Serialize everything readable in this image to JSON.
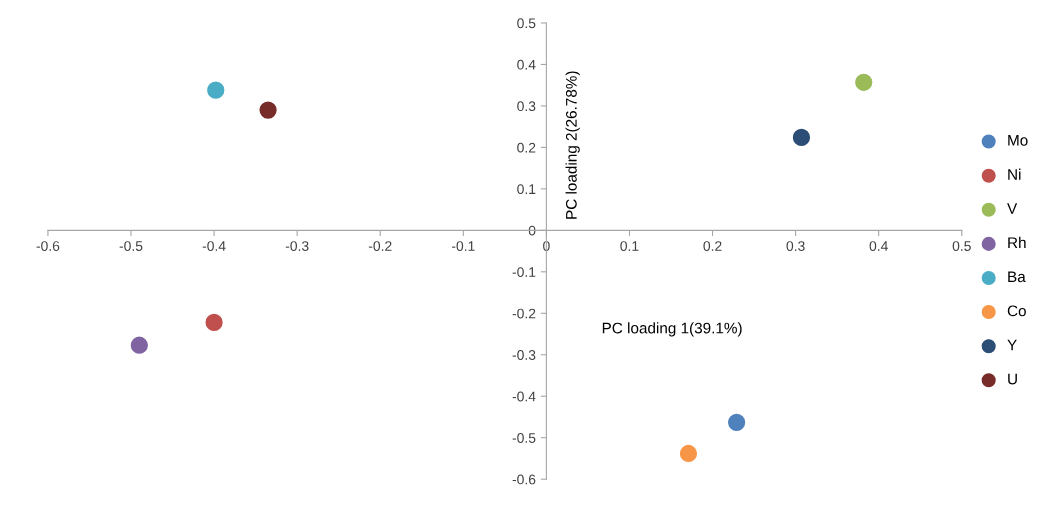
{
  "chart_data": {
    "type": "scatter",
    "xlabel": "PC loading 1(39.1%)",
    "ylabel": "PC loading 2(26.78%)",
    "xlim": [
      -0.6,
      0.5
    ],
    "xticks": [
      -0.6,
      -0.5,
      -0.4,
      -0.3,
      -0.2,
      -0.1,
      0,
      0.1,
      0.2,
      0.3,
      0.4,
      0.5
    ],
    "ylim": [
      -0.6,
      0.5
    ],
    "yticks": [
      -0.6,
      -0.5,
      -0.4,
      -0.3,
      -0.2,
      -0.1,
      0,
      0.1,
      0.2,
      0.3,
      0.4,
      0.5
    ],
    "marker": "circle",
    "grid": false,
    "legend": "right",
    "series": [
      {
        "name": "Mo",
        "color": "#4f81bd",
        "x": [
          0.229
        ],
        "values": [
          -0.463
        ]
      },
      {
        "name": "Ni",
        "color": "#c0504d",
        "x": [
          -0.4
        ],
        "values": [
          -0.222
        ]
      },
      {
        "name": "V",
        "color": "#9bbb59",
        "x": [
          0.382
        ],
        "values": [
          0.357
        ]
      },
      {
        "name": "Rh",
        "color": "#8064a2",
        "x": [
          -0.49
        ],
        "values": [
          -0.277
        ]
      },
      {
        "name": "Ba",
        "color": "#4bacc6",
        "x": [
          -0.398
        ],
        "values": [
          0.338
        ]
      },
      {
        "name": "Co",
        "color": "#f79646",
        "x": [
          0.171
        ],
        "values": [
          -0.538
        ]
      },
      {
        "name": "Y",
        "color": "#2c4d75",
        "x": [
          0.307
        ],
        "values": [
          0.224
        ]
      },
      {
        "name": "U",
        "color": "#772c2a",
        "x": [
          -0.335
        ],
        "values": [
          0.29
        ]
      }
    ]
  }
}
